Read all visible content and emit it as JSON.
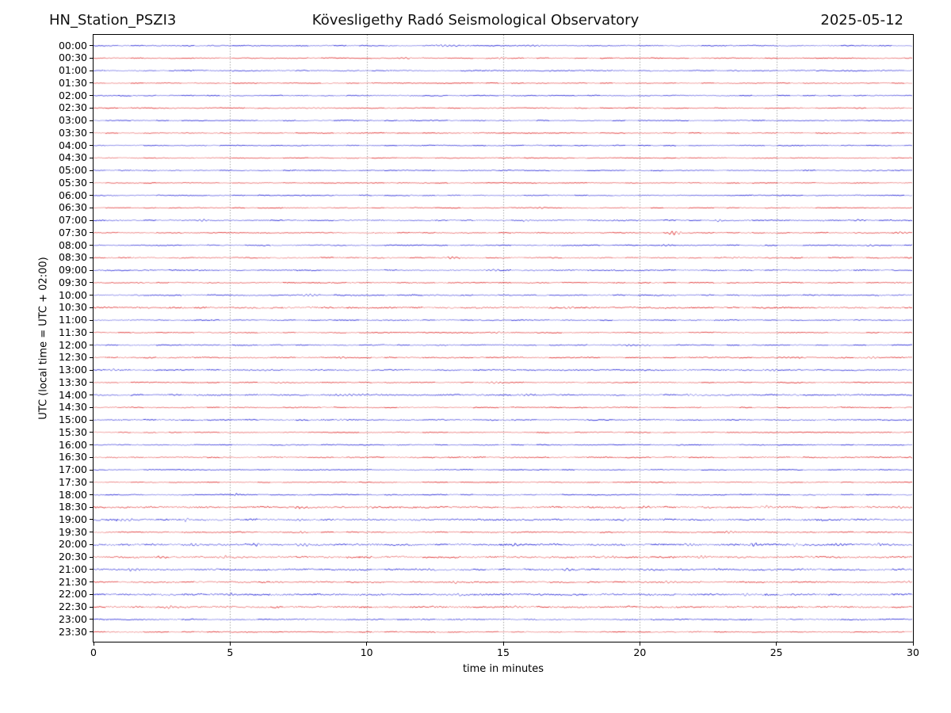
{
  "chart_data": {
    "type": "line",
    "subtype": "helicorder-dayplot",
    "title_left": "HN_Station_PSZI3",
    "title_center": "Kövesligethy Radó Seismological Observatory",
    "title_right": "2025-05-12",
    "xlabel": "time in minutes",
    "ylabel": "UTC (local time = UTC + 02:00)",
    "xlim": [
      0,
      30
    ],
    "x_ticks": [
      0,
      5,
      10,
      15,
      20,
      25,
      30
    ],
    "minutes_per_row": 30,
    "grid": {
      "vertical_dotted_at_minutes": [
        5,
        10,
        15,
        20,
        25
      ]
    },
    "trace_colors": {
      "blue": "#2b2bd8",
      "red": "#e03535"
    },
    "grid_color": "#666666",
    "axis_color": "#000000",
    "rows": [
      {
        "label": "00:00",
        "color": "blue",
        "noise": 0.55,
        "events": [
          [
            13.0,
            0.9,
            1.2
          ],
          [
            16.2,
            0.8,
            0.8
          ]
        ]
      },
      {
        "label": "00:30",
        "color": "red",
        "noise": 0.5,
        "events": [
          [
            11.4,
            0.7,
            0.5
          ],
          [
            14.9,
            0.7,
            0.5
          ]
        ]
      },
      {
        "label": "01:00",
        "color": "blue",
        "noise": 0.6,
        "events": []
      },
      {
        "label": "01:30",
        "color": "red",
        "noise": 0.5,
        "events": []
      },
      {
        "label": "02:00",
        "color": "blue",
        "noise": 0.55,
        "events": []
      },
      {
        "label": "02:30",
        "color": "red",
        "noise": 0.5,
        "events": [
          [
            8.2,
            0.6,
            0.6
          ]
        ]
      },
      {
        "label": "03:00",
        "color": "blue",
        "noise": 0.5,
        "events": []
      },
      {
        "label": "03:30",
        "color": "red",
        "noise": 0.5,
        "events": []
      },
      {
        "label": "04:00",
        "color": "blue",
        "noise": 0.5,
        "events": []
      },
      {
        "label": "04:30",
        "color": "red",
        "noise": 0.45,
        "events": []
      },
      {
        "label": "05:00",
        "color": "blue",
        "noise": 0.55,
        "events": []
      },
      {
        "label": "05:30",
        "color": "red",
        "noise": 0.45,
        "events": []
      },
      {
        "label": "06:00",
        "color": "blue",
        "noise": 0.5,
        "events": [
          [
            11.6,
            0.7,
            0.5
          ]
        ]
      },
      {
        "label": "06:30",
        "color": "red",
        "noise": 0.5,
        "events": [
          [
            16.3,
            0.7,
            0.4
          ]
        ]
      },
      {
        "label": "07:00",
        "color": "blue",
        "noise": 0.65,
        "events": [
          [
            4.0,
            1.1,
            0.5
          ],
          [
            15.8,
            0.9,
            0.5
          ],
          [
            22.9,
            0.9,
            0.4
          ],
          [
            28.1,
            0.8,
            0.4
          ]
        ]
      },
      {
        "label": "07:30",
        "color": "red",
        "noise": 0.55,
        "events": [
          [
            21.3,
            2.1,
            0.5
          ],
          [
            29.5,
            1.1,
            0.4
          ]
        ]
      },
      {
        "label": "08:00",
        "color": "blue",
        "noise": 0.55,
        "events": [
          [
            21.0,
            1.1,
            0.35
          ],
          [
            28.4,
            0.9,
            0.3
          ]
        ]
      },
      {
        "label": "08:30",
        "color": "red",
        "noise": 0.65,
        "events": [
          [
            13.1,
            0.8,
            0.7
          ],
          [
            23.6,
            0.8,
            0.5
          ]
        ]
      },
      {
        "label": "09:00",
        "color": "blue",
        "noise": 0.65,
        "events": [
          [
            14.6,
            0.9,
            0.6
          ]
        ]
      },
      {
        "label": "09:30",
        "color": "red",
        "noise": 0.55,
        "events": [
          [
            1.7,
            0.8,
            0.4
          ]
        ]
      },
      {
        "label": "10:00",
        "color": "blue",
        "noise": 0.65,
        "events": [
          [
            7.9,
            1.1,
            0.6
          ]
        ]
      },
      {
        "label": "10:30",
        "color": "red",
        "noise": 0.85,
        "events": [
          [
            17.5,
            1.0,
            0.6
          ]
        ]
      },
      {
        "label": "11:00",
        "color": "blue",
        "noise": 0.55,
        "events": []
      },
      {
        "label": "11:30",
        "color": "red",
        "noise": 0.55,
        "events": [
          [
            14.8,
            1.0,
            0.4
          ]
        ]
      },
      {
        "label": "12:00",
        "color": "blue",
        "noise": 0.55,
        "events": [
          [
            19.9,
            0.9,
            0.9
          ]
        ]
      },
      {
        "label": "12:30",
        "color": "red",
        "noise": 0.65,
        "events": [
          [
            9.1,
            0.9,
            0.4
          ],
          [
            25.9,
            0.9,
            0.5
          ],
          [
            28.5,
            0.9,
            0.5
          ]
        ]
      },
      {
        "label": "13:00",
        "color": "blue",
        "noise": 0.65,
        "events": [
          [
            0.7,
            1.1,
            0.4
          ],
          [
            6.5,
            0.8,
            0.5
          ],
          [
            24.8,
            1.0,
            0.5
          ]
        ]
      },
      {
        "label": "13:30",
        "color": "red",
        "noise": 0.55,
        "events": [
          [
            6.9,
            0.8,
            0.4
          ],
          [
            14.7,
            1.1,
            0.4
          ]
        ]
      },
      {
        "label": "14:00",
        "color": "blue",
        "noise": 0.75,
        "events": [
          [
            9.5,
            0.9,
            1.8
          ],
          [
            15.8,
            0.9,
            0.7
          ],
          [
            22.0,
            1.1,
            0.5
          ]
        ]
      },
      {
        "label": "14:30",
        "color": "red",
        "noise": 0.55,
        "events": []
      },
      {
        "label": "15:00",
        "color": "blue",
        "noise": 0.65,
        "events": [
          [
            9.0,
            0.8,
            0.5
          ]
        ]
      },
      {
        "label": "15:30",
        "color": "red",
        "noise": 0.5,
        "events": []
      },
      {
        "label": "16:00",
        "color": "blue",
        "noise": 0.5,
        "events": []
      },
      {
        "label": "16:30",
        "color": "red",
        "noise": 0.65,
        "events": []
      },
      {
        "label": "17:00",
        "color": "blue",
        "noise": 0.5,
        "events": []
      },
      {
        "label": "17:30",
        "color": "red",
        "noise": 0.5,
        "events": []
      },
      {
        "label": "18:00",
        "color": "blue",
        "noise": 0.55,
        "events": [
          [
            5.2,
            1.7,
            0.12
          ]
        ]
      },
      {
        "label": "18:30",
        "color": "red",
        "noise": 0.95,
        "events": [
          [
            7.6,
            1.2,
            0.5
          ],
          [
            10.1,
            1.1,
            0.5
          ],
          [
            20.1,
            1.1,
            0.5
          ],
          [
            24.6,
            1.3,
            0.6
          ],
          [
            29.6,
            1.2,
            0.4
          ]
        ]
      },
      {
        "label": "19:00",
        "color": "blue",
        "noise": 0.95,
        "events": [
          [
            1.2,
            1.3,
            0.8
          ],
          [
            3.4,
            1.9,
            0.25
          ],
          [
            7.6,
            1.0,
            0.4
          ],
          [
            19.6,
            1.1,
            0.5
          ]
        ]
      },
      {
        "label": "19:30",
        "color": "red",
        "noise": 0.6,
        "events": [
          [
            7.7,
            1.3,
            0.3
          ],
          [
            23.3,
            1.4,
            0.3
          ]
        ]
      },
      {
        "label": "20:00",
        "color": "blue",
        "noise": 1.0,
        "events": [
          [
            3.7,
            1.3,
            0.4
          ],
          [
            6.0,
            1.5,
            0.3
          ],
          [
            7.7,
            1.4,
            0.4
          ],
          [
            15.4,
            1.1,
            0.4
          ],
          [
            21.8,
            1.2,
            0.4
          ],
          [
            24.2,
            1.5,
            0.5
          ],
          [
            25.7,
            1.4,
            0.4
          ],
          [
            27.3,
            1.7,
            0.3
          ],
          [
            28.7,
            1.3,
            0.4
          ]
        ]
      },
      {
        "label": "20:30",
        "color": "red",
        "noise": 1.0,
        "events": [
          [
            2.5,
            1.4,
            0.4
          ],
          [
            4.8,
            1.3,
            0.3
          ],
          [
            18.8,
            1.7,
            0.4
          ],
          [
            22.2,
            1.3,
            0.4
          ],
          [
            29.6,
            1.4,
            0.3
          ]
        ]
      },
      {
        "label": "21:00",
        "color": "blue",
        "noise": 0.95,
        "events": [
          [
            1.4,
            1.3,
            0.5
          ],
          [
            12.4,
            1.3,
            0.4
          ],
          [
            17.3,
            1.2,
            0.4
          ],
          [
            20.4,
            1.3,
            0.4
          ]
        ]
      },
      {
        "label": "21:30",
        "color": "red",
        "noise": 0.75,
        "events": [
          [
            13.3,
            1.2,
            0.4
          ],
          [
            21.1,
            1.4,
            0.4
          ],
          [
            29.8,
            1.3,
            0.3
          ]
        ]
      },
      {
        "label": "22:00",
        "color": "blue",
        "noise": 0.95,
        "events": [
          [
            5.0,
            1.3,
            0.4
          ],
          [
            13.3,
            1.2,
            0.4
          ],
          [
            23.9,
            1.2,
            0.4
          ]
        ]
      },
      {
        "label": "22:30",
        "color": "red",
        "noise": 0.95,
        "events": [
          [
            2.8,
            1.1,
            0.6
          ],
          [
            15.4,
            1.0,
            0.6
          ]
        ]
      },
      {
        "label": "23:00",
        "color": "blue",
        "noise": 0.65,
        "events": []
      },
      {
        "label": "23:30",
        "color": "red",
        "noise": 0.55,
        "events": []
      }
    ]
  }
}
